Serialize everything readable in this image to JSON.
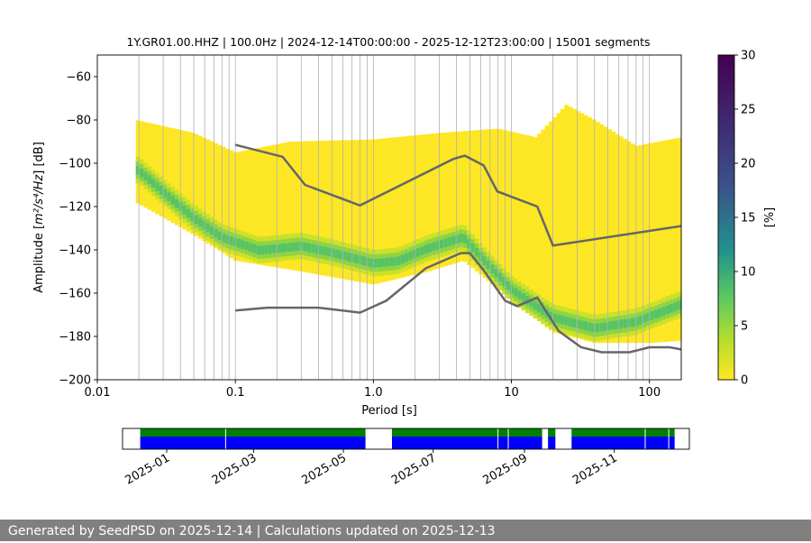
{
  "chart_data": [
    {
      "type": "heatmap",
      "title": "1Y.GR01.00.HHZ | 100.0Hz | 2024-12-14T00:00:00 - 2025-12-12T23:00:00 | 15001 segments",
      "xlabel": "Period [s]",
      "ylabel_prefix": "Amplitude [",
      "ylabel_units": "m²/s⁴/Hz",
      "ylabel_suffix": "] [dB]",
      "x_scale": "log",
      "xlim": [
        0.01,
        170
      ],
      "ylim": [
        -200,
        -50
      ],
      "x_ticks": [
        {
          "value": 0.01,
          "label": "0.01"
        },
        {
          "value": 0.1,
          "label": "0.1"
        },
        {
          "value": 1,
          "label": "1.0"
        },
        {
          "value": 10,
          "label": "10"
        },
        {
          "value": 100,
          "label": "100"
        }
      ],
      "y_ticks": [
        -60,
        -80,
        -100,
        -120,
        -140,
        -160,
        -180,
        -200
      ],
      "grid": "vertical, log minor periods",
      "colormap": "viridis_white",
      "colorbar": {
        "label": "[%]",
        "ticks": [
          0,
          5,
          10,
          15,
          20,
          25,
          30
        ],
        "range": [
          0,
          30
        ]
      },
      "density_median": [
        {
          "period": 0.02,
          "db": -103
        },
        {
          "period": 0.03,
          "db": -113
        },
        {
          "period": 0.05,
          "db": -125
        },
        {
          "period": 0.08,
          "db": -134
        },
        {
          "period": 0.15,
          "db": -140
        },
        {
          "period": 0.3,
          "db": -138
        },
        {
          "period": 0.5,
          "db": -141
        },
        {
          "period": 1.0,
          "db": -146
        },
        {
          "period": 1.5,
          "db": -145
        },
        {
          "period": 2.5,
          "db": -139
        },
        {
          "period": 4.5,
          "db": -134
        },
        {
          "period": 6,
          "db": -143
        },
        {
          "period": 10,
          "db": -158
        },
        {
          "period": 20,
          "db": -171
        },
        {
          "period": 40,
          "db": -176
        },
        {
          "period": 80,
          "db": -173
        },
        {
          "period": 170,
          "db": -165
        }
      ],
      "density_upper": [
        {
          "period": 0.019,
          "db": -80
        },
        {
          "period": 0.05,
          "db": -86
        },
        {
          "period": 0.1,
          "db": -95
        },
        {
          "period": 0.25,
          "db": -90
        },
        {
          "period": 1,
          "db": -89
        },
        {
          "period": 3,
          "db": -86
        },
        {
          "period": 8,
          "db": -84
        },
        {
          "period": 15,
          "db": -88
        },
        {
          "period": 25,
          "db": -73
        },
        {
          "period": 40,
          "db": -80
        },
        {
          "period": 80,
          "db": -92
        },
        {
          "period": 170,
          "db": -88
        }
      ],
      "density_lower": [
        {
          "period": 0.019,
          "db": -118
        },
        {
          "period": 0.05,
          "db": -133
        },
        {
          "period": 0.1,
          "db": -145
        },
        {
          "period": 0.3,
          "db": -150
        },
        {
          "period": 1,
          "db": -156
        },
        {
          "period": 2.5,
          "db": -150
        },
        {
          "period": 4.5,
          "db": -145
        },
        {
          "period": 8,
          "db": -158
        },
        {
          "period": 20,
          "db": -178
        },
        {
          "period": 40,
          "db": -183
        },
        {
          "period": 100,
          "db": -183
        },
        {
          "period": 170,
          "db": -182
        }
      ],
      "series": [
        {
          "name": "",
          "color": "#666666",
          "points": [
            {
              "x": 0.1,
              "y": -91.5
            },
            {
              "x": 0.22,
              "y": -97
            },
            {
              "x": 0.32,
              "y": -110
            },
            {
              "x": 0.8,
              "y": -119.5
            },
            {
              "x": 3.8,
              "y": -98
            },
            {
              "x": 4.6,
              "y": -96.5
            },
            {
              "x": 6.3,
              "y": -101
            },
            {
              "x": 7.9,
              "y": -113
            },
            {
              "x": 15.4,
              "y": -120
            },
            {
              "x": 20,
              "y": -138
            },
            {
              "x": 170,
              "y": -129
            }
          ]
        },
        {
          "name": "",
          "color": "#666666",
          "points": [
            {
              "x": 0.1,
              "y": -168
            },
            {
              "x": 0.17,
              "y": -166.7
            },
            {
              "x": 0.4,
              "y": -166.7
            },
            {
              "x": 0.8,
              "y": -169
            },
            {
              "x": 1.24,
              "y": -163.5
            },
            {
              "x": 2.4,
              "y": -148.5
            },
            {
              "x": 4.3,
              "y": -141.5
            },
            {
              "x": 5.0,
              "y": -141.5
            },
            {
              "x": 6.3,
              "y": -149.5
            },
            {
              "x": 9.0,
              "y": -163.5
            },
            {
              "x": 11.0,
              "y": -166
            },
            {
              "x": 15.4,
              "y": -162
            },
            {
              "x": 22,
              "y": -177.5
            },
            {
              "x": 32,
              "y": -185
            },
            {
              "x": 45,
              "y": -187.3
            },
            {
              "x": 72,
              "y": -187.3
            },
            {
              "x": 100,
              "y": -185
            },
            {
              "x": 140,
              "y": -185
            },
            {
              "x": 170,
              "y": -186
            }
          ]
        }
      ]
    },
    {
      "type": "timeline",
      "x_tick_labels": [
        "2025-01",
        "2025-03",
        "2025-05",
        "2025-07",
        "2025-09",
        "2025-11"
      ],
      "x_tick_dates": [
        "2025-01-01",
        "2025-03-01",
        "2025-05-01",
        "2025-07-01",
        "2025-09-01",
        "2025-11-01"
      ],
      "date_range": [
        "2024-12-02",
        "2025-12-22"
      ],
      "bars": [
        {
          "name": "green",
          "color": "#008000",
          "segments": [
            [
              "2024-12-14",
              "2025-05-16"
            ],
            [
              "2025-06-03",
              "2025-09-13"
            ],
            [
              "2025-09-17",
              "2025-09-22"
            ],
            [
              "2025-10-03",
              "2025-12-12"
            ]
          ]
        },
        {
          "name": "blue",
          "color": "#0000ff",
          "segments": [
            [
              "2024-12-14",
              "2025-05-16"
            ],
            [
              "2025-06-03",
              "2025-09-13"
            ],
            [
              "2025-09-17",
              "2025-09-22"
            ],
            [
              "2025-10-03",
              "2025-12-12"
            ]
          ]
        }
      ],
      "gap_lines": [
        "2025-02-10",
        "2025-08-14",
        "2025-08-21",
        "2025-09-15",
        "2025-11-22",
        "2025-12-08"
      ]
    }
  ],
  "footer": {
    "text": "Generated by SeedPSD on 2025-12-14 | Calculations updated on 2025-12-13"
  }
}
